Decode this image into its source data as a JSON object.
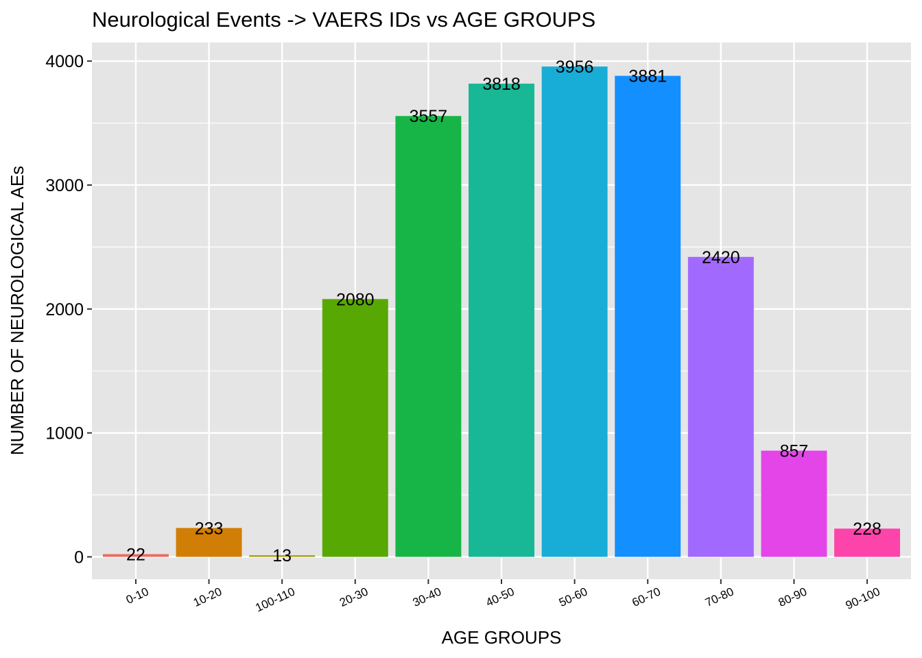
{
  "chart_data": {
    "type": "bar",
    "title": "Neurological Events -> VAERS IDs vs AGE GROUPS",
    "xlabel": "AGE GROUPS",
    "ylabel": "NUMBER OF NEUROLOGICAL AEs",
    "categories": [
      "0-10",
      "10-20",
      "100-110",
      "20-30",
      "30-40",
      "40-50",
      "50-60",
      "60-70",
      "70-80",
      "80-90",
      "90-100"
    ],
    "values": [
      22,
      233,
      13,
      2080,
      3557,
      3818,
      3956,
      3881,
      2420,
      857,
      228
    ],
    "data_labels": [
      "22",
      "233",
      "13",
      "2080",
      "3557",
      "3818",
      "3956",
      "3881",
      "2420",
      "857",
      "228"
    ],
    "colors": [
      "#F8766D",
      "#D39200",
      "#93AA00",
      "#00BA38",
      "#00C19F",
      "#00B9E3",
      "#00B6EB",
      "#619CFF",
      "#DB72FB",
      "#FF61C3",
      "#FF61C3"
    ],
    "bar_colors": [
      "#EC6A62",
      "#D17E06",
      "#A6A00C",
      "#58A804",
      "#17B547",
      "#18B795",
      "#18ADD6",
      "#148FFF",
      "#A269FE",
      "#E445E9",
      "#FD44AB"
    ],
    "yticks": [
      0,
      1000,
      2000,
      3000,
      4000
    ],
    "ytick_labels": [
      "0",
      "1000",
      "2000",
      "3000",
      "4000"
    ],
    "ylim": [
      -180,
      4150
    ],
    "grid": true,
    "legend": "none",
    "panel_background": "#E5E5E5",
    "grid_color": "#FFFFFF"
  }
}
